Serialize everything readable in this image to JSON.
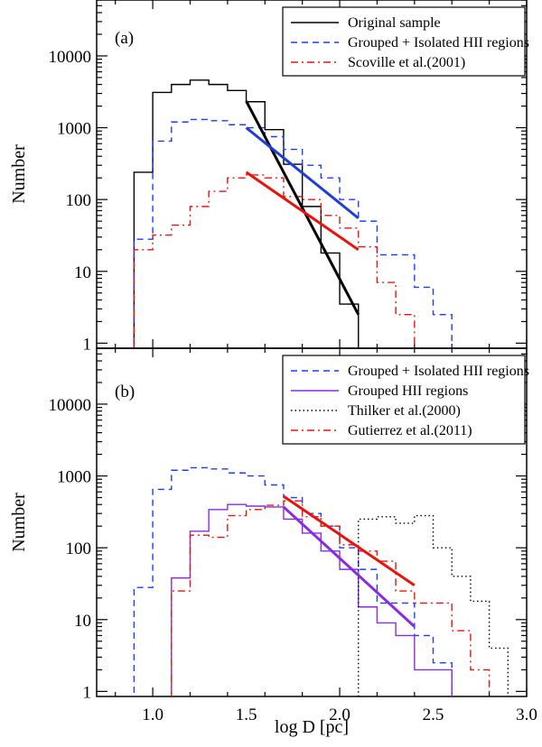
{
  "chart_data": [
    {
      "type": "line",
      "panel": "a",
      "panel_label": "(a)",
      "xlabel": "log D [pc]",
      "ylabel": "Number",
      "xlim": [
        0.7,
        3.0
      ],
      "ylim": [
        0.85,
        60000
      ],
      "yscale": "log",
      "yticks": [
        1,
        10,
        100,
        1000,
        10000
      ],
      "ytick_labels": [
        "1",
        "10",
        "100",
        "1000",
        "10000"
      ],
      "legend_position": "top-right",
      "series": [
        {
          "name": "Original sample",
          "style": "solid",
          "color": "#000000",
          "x": [
            0.9,
            1.0,
            1.1,
            1.2,
            1.3,
            1.4,
            1.5,
            1.6,
            1.7,
            1.8,
            1.9,
            2.0,
            2.1
          ],
          "y": [
            240,
            3100,
            4000,
            4600,
            4000,
            3300,
            2300,
            940,
            310,
            80,
            18,
            3.5,
            0.5
          ]
        },
        {
          "name": "Grouped + Isolated HII regions",
          "style": "dashed",
          "color": "#1a3cff",
          "x": [
            0.9,
            1.0,
            1.1,
            1.2,
            1.3,
            1.4,
            1.5,
            1.6,
            1.7,
            1.8,
            1.9,
            2.0,
            2.1,
            2.2,
            2.3,
            2.4,
            2.5,
            2.6
          ],
          "y": [
            28,
            650,
            1200,
            1300,
            1250,
            1100,
            1000,
            750,
            500,
            300,
            200,
            100,
            50,
            17,
            17,
            6,
            2.5,
            0.5
          ]
        },
        {
          "name": "Scoville et al.(2001)",
          "style": "dashdot",
          "color": "#e8140a",
          "x": [
            0.9,
            1.0,
            1.1,
            1.2,
            1.3,
            1.4,
            1.5,
            1.6,
            1.7,
            1.8,
            1.9,
            2.0,
            2.1,
            2.2,
            2.3,
            2.4,
            2.5
          ],
          "y": [
            20,
            32,
            44,
            80,
            130,
            200,
            220,
            200,
            110,
            100,
            60,
            40,
            22,
            7,
            2.5,
            0.5,
            0.5
          ]
        }
      ],
      "fits": [
        {
          "series": "Original sample",
          "color": "#000000",
          "x": [
            1.5,
            2.1
          ],
          "y": [
            2350,
            2.5
          ]
        },
        {
          "series": "Grouped + Isolated HII regions",
          "color": "#1f3fd6",
          "x": [
            1.5,
            2.1
          ],
          "y": [
            1000,
            55
          ]
        },
        {
          "series": "Scoville et al.(2001)",
          "color": "#e8140a",
          "x": [
            1.5,
            2.1
          ],
          "y": [
            240,
            20
          ]
        }
      ]
    },
    {
      "type": "line",
      "panel": "b",
      "panel_label": "(b)",
      "xlabel": "log D [pc]",
      "ylabel": "Number",
      "xlim": [
        0.7,
        3.0
      ],
      "ylim": [
        0.85,
        60000
      ],
      "yscale": "log",
      "xticks": [
        1.0,
        1.5,
        2.0,
        2.5,
        3.0
      ],
      "xtick_labels": [
        "1.0",
        "1.5",
        "2.0",
        "2.5",
        "3.0"
      ],
      "yticks": [
        1,
        10,
        100,
        1000,
        10000
      ],
      "ytick_labels": [
        "1",
        "10",
        "100",
        "1000",
        "10000"
      ],
      "legend_position": "top-right",
      "series": [
        {
          "name": "Grouped + Isolated HII regions",
          "style": "dashed",
          "color": "#1a3cff",
          "x": [
            0.9,
            1.0,
            1.1,
            1.2,
            1.3,
            1.4,
            1.5,
            1.6,
            1.7,
            1.8,
            1.9,
            2.0,
            2.1,
            2.2,
            2.3,
            2.4,
            2.5,
            2.6
          ],
          "y": [
            28,
            650,
            1200,
            1300,
            1250,
            1100,
            1000,
            750,
            500,
            300,
            200,
            100,
            50,
            17,
            17,
            6,
            2.5,
            0.5
          ]
        },
        {
          "name": "Grouped HII regions",
          "style": "solid",
          "color": "#8a2be2",
          "x": [
            1.1,
            1.2,
            1.3,
            1.4,
            1.5,
            1.6,
            1.7,
            1.8,
            1.9,
            2.0,
            2.1,
            2.2,
            2.3,
            2.4,
            2.5,
            2.6
          ],
          "y": [
            38,
            170,
            340,
            400,
            380,
            370,
            250,
            160,
            90,
            50,
            15,
            9,
            6,
            2,
            2,
            0.5
          ]
        },
        {
          "name": "Thilker et al.(2000)",
          "style": "dotted",
          "color": "#000000",
          "x": [
            2.0,
            2.1,
            2.2,
            2.3,
            2.4,
            2.5,
            2.6,
            2.7,
            2.8,
            2.9
          ],
          "y": [
            0.5,
            250,
            270,
            220,
            280,
            100,
            40,
            18,
            4,
            0.5
          ]
        },
        {
          "name": "Gutierrez et al.(2011)",
          "style": "dashdot",
          "color": "#e8140a",
          "x": [
            1.1,
            1.2,
            1.3,
            1.4,
            1.5,
            1.6,
            1.7,
            1.8,
            1.9,
            2.0,
            2.1,
            2.2,
            2.3,
            2.4,
            2.5,
            2.6,
            2.7,
            2.8
          ],
          "y": [
            25,
            150,
            140,
            280,
            340,
            390,
            450,
            270,
            200,
            110,
            90,
            65,
            25,
            17,
            17,
            7,
            2,
            0.5
          ]
        }
      ],
      "fits": [
        {
          "series": "Grouped HII regions",
          "color": "#8a2be2",
          "x": [
            1.7,
            2.4
          ],
          "y": [
            370,
            8
          ]
        },
        {
          "series": "Gutierrez et al.(2011)",
          "color": "#e8140a",
          "x": [
            1.7,
            2.4
          ],
          "y": [
            520,
            30
          ]
        }
      ]
    }
  ]
}
